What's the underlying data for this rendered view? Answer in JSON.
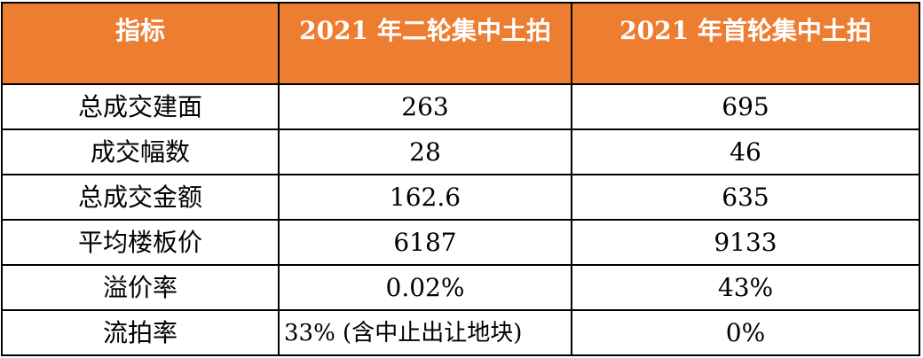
{
  "header_bg": "#ED7D31",
  "header_text_color": "#FFFFFF",
  "border_color": "#000000",
  "chart_data": {
    "type": "table",
    "columns": [
      "指标",
      "2021 年二轮集中土拍",
      "2021 年首轮集中土拍"
    ],
    "rows": [
      [
        "总成交建面",
        "263",
        "695"
      ],
      [
        "成交幅数",
        "28",
        "46"
      ],
      [
        "总成交金额",
        "162.6",
        "635"
      ],
      [
        "平均楼板价",
        "6187",
        "9133"
      ],
      [
        "溢价率",
        "0.02%",
        "43%"
      ],
      [
        "流拍率",
        "33% (含中止出让地块)",
        "0%"
      ]
    ]
  }
}
